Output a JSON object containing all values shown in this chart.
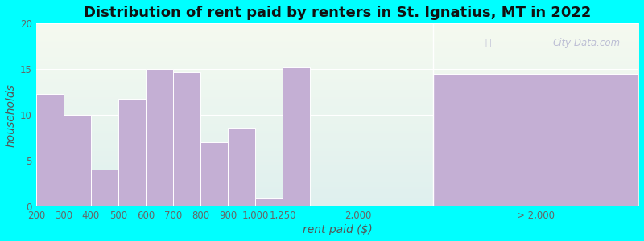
{
  "title": "Distribution of rent paid by renters in St. Ignatius, MT in 2022",
  "xlabel": "rent paid ($)",
  "ylabel": "households",
  "background_color": "#00FFFF",
  "bar_color": "#c4afd4",
  "bar_edge_color": "#ffffff",
  "ylim": [
    0,
    20
  ],
  "yticks": [
    0,
    5,
    10,
    15,
    20
  ],
  "categories": [
    "200",
    "300",
    "400",
    "500",
    "600",
    "700",
    "800",
    "900",
    "1,000",
    "1,250",
    "2,000",
    "> 2,000"
  ],
  "values": [
    12.3,
    10.0,
    4.0,
    11.8,
    15.0,
    14.7,
    7.0,
    8.6,
    0.9,
    15.2,
    0,
    14.5
  ],
  "title_fontsize": 13,
  "axis_label_fontsize": 10,
  "tick_fontsize": 8.5,
  "gradient_top": "#f5faf0",
  "gradient_bottom": "#dff0ee"
}
